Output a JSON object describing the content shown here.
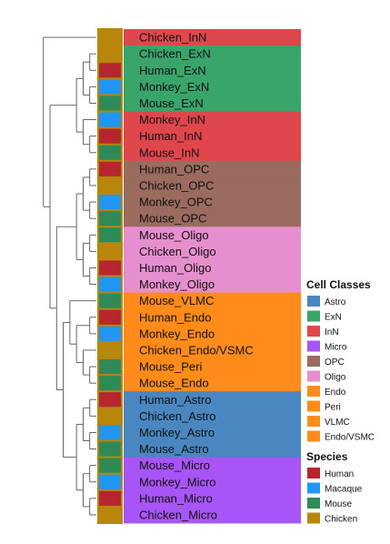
{
  "chart_data": {
    "type": "heatmap",
    "title": "",
    "rows": [
      {
        "label": "Chicken_InN",
        "species": "Chicken",
        "cell_class": "InN"
      },
      {
        "label": "Chicken_ExN",
        "species": "Chicken",
        "cell_class": "ExN"
      },
      {
        "label": "Human_ExN",
        "species": "Human",
        "cell_class": "ExN"
      },
      {
        "label": "Monkey_ExN",
        "species": "Macaque",
        "cell_class": "ExN"
      },
      {
        "label": "Mouse_ExN",
        "species": "Mouse",
        "cell_class": "ExN"
      },
      {
        "label": "Monkey_InN",
        "species": "Macaque",
        "cell_class": "InN"
      },
      {
        "label": "Human_InN",
        "species": "Human",
        "cell_class": "InN"
      },
      {
        "label": "Mouse_InN",
        "species": "Mouse",
        "cell_class": "InN"
      },
      {
        "label": "Human_OPC",
        "species": "Human",
        "cell_class": "OPC"
      },
      {
        "label": "Chicken_OPC",
        "species": "Chicken",
        "cell_class": "OPC"
      },
      {
        "label": "Monkey_OPC",
        "species": "Macaque",
        "cell_class": "OPC"
      },
      {
        "label": "Mouse_OPC",
        "species": "Mouse",
        "cell_class": "OPC"
      },
      {
        "label": "Mouse_Oligo",
        "species": "Mouse",
        "cell_class": "Oligo"
      },
      {
        "label": "Chicken_Oligo",
        "species": "Chicken",
        "cell_class": "Oligo"
      },
      {
        "label": "Human_Oligo",
        "species": "Human",
        "cell_class": "Oligo"
      },
      {
        "label": "Monkey_Oligo",
        "species": "Macaque",
        "cell_class": "Oligo"
      },
      {
        "label": "Mouse_VLMC",
        "species": "Mouse",
        "cell_class": "VLMC"
      },
      {
        "label": "Human_Endo",
        "species": "Human",
        "cell_class": "Endo"
      },
      {
        "label": "Monkey_Endo",
        "species": "Macaque",
        "cell_class": "Endo"
      },
      {
        "label": "Chicken_Endo/VSMC",
        "species": "Chicken",
        "cell_class": "Endo/VSMC"
      },
      {
        "label": "Mouse_Peri",
        "species": "Mouse",
        "cell_class": "Peri"
      },
      {
        "label": "Mouse_Endo",
        "species": "Mouse",
        "cell_class": "Endo"
      },
      {
        "label": "Human_Astro",
        "species": "Human",
        "cell_class": "Astro"
      },
      {
        "label": "Chicken_Astro",
        "species": "Chicken",
        "cell_class": "Astro"
      },
      {
        "label": "Monkey_Astro",
        "species": "Macaque",
        "cell_class": "Astro"
      },
      {
        "label": "Mouse_Astro",
        "species": "Mouse",
        "cell_class": "Astro"
      },
      {
        "label": "Mouse_Micro",
        "species": "Mouse",
        "cell_class": "Micro"
      },
      {
        "label": "Monkey_Micro",
        "species": "Macaque",
        "cell_class": "Micro"
      },
      {
        "label": "Human_Micro",
        "species": "Human",
        "cell_class": "Micro"
      },
      {
        "label": "Chicken_Micro",
        "species": "Chicken",
        "cell_class": "Micro"
      }
    ],
    "cell_classes_legend": {
      "title": "Cell Classes",
      "items": [
        {
          "label": "Astro",
          "color": "#4a86c0"
        },
        {
          "label": "ExN",
          "color": "#3aa56a"
        },
        {
          "label": "InN",
          "color": "#e0474c"
        },
        {
          "label": "Micro",
          "color": "#a855f7"
        },
        {
          "label": "OPC",
          "color": "#9b6b5f"
        },
        {
          "label": "Oligo",
          "color": "#e68fce"
        },
        {
          "label": "Endo",
          "color": "#ff8c1a"
        },
        {
          "label": "Peri",
          "color": "#ff8c1a"
        },
        {
          "label": "VLMC",
          "color": "#ff8c1a"
        },
        {
          "label": "Endo/VSMC",
          "color": "#ff8c1a"
        }
      ]
    },
    "species_legend": {
      "title": "Species",
      "items": [
        {
          "label": "Human",
          "color": "#b5262e"
        },
        {
          "label": "Macaque",
          "color": "#2196f3"
        },
        {
          "label": "Mouse",
          "color": "#2e8b57"
        },
        {
          "label": "Chicken",
          "color": "#b8860b"
        }
      ]
    },
    "legend_position": "right"
  }
}
